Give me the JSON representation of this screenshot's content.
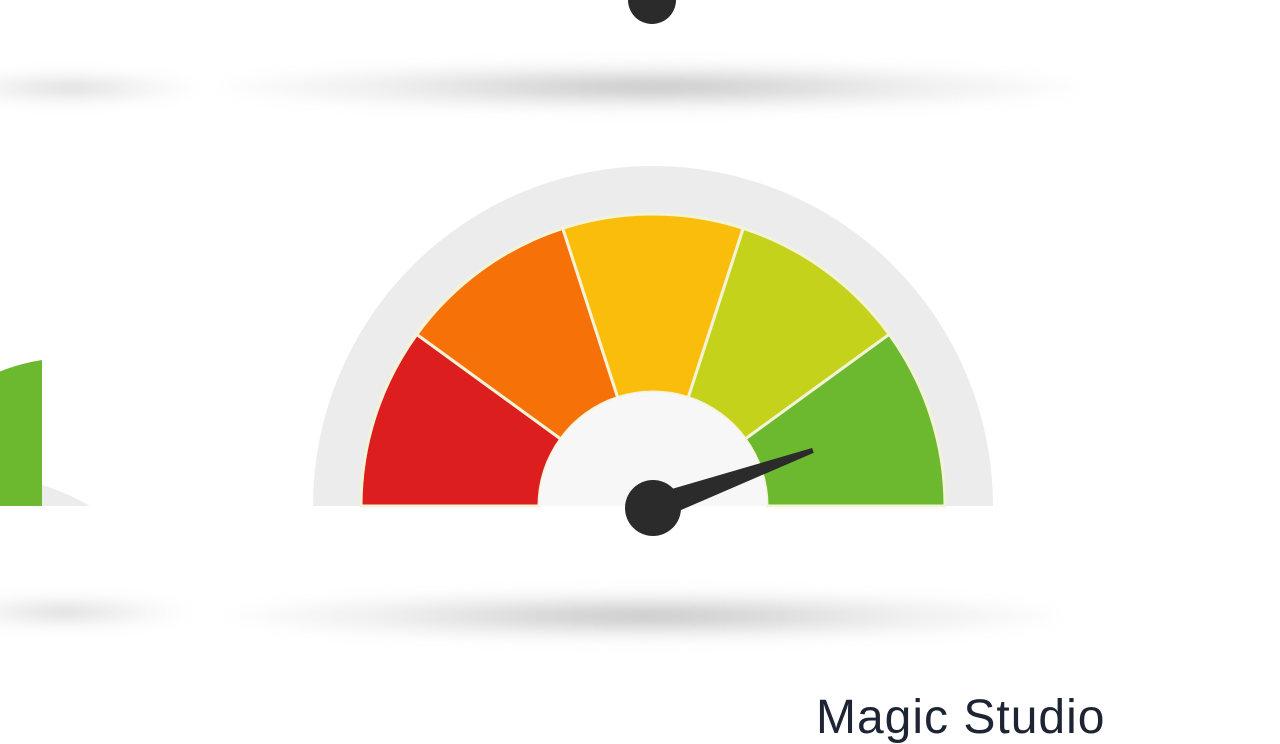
{
  "brand": {
    "text": "Magic Studio"
  },
  "gauge": {
    "level_fraction": 0.89,
    "zones": [
      {
        "name": "red",
        "color": "#dc1e1e"
      },
      {
        "name": "orange",
        "color": "#f67208"
      },
      {
        "name": "yellow",
        "color": "#fbbd0c"
      },
      {
        "name": "yellow-green",
        "color": "#c5d21b"
      },
      {
        "name": "green",
        "color": "#6cb82e"
      }
    ],
    "bezel_color": "#ececec",
    "needle_color": "#2b2b2b"
  },
  "side_gauge": {
    "visible_zone_color": "#6cb82e"
  },
  "icons": {
    "main": "speedometer-gauge-icon",
    "side": "partial-gauge-icon",
    "top": "partial-gauge-needle-icon"
  }
}
